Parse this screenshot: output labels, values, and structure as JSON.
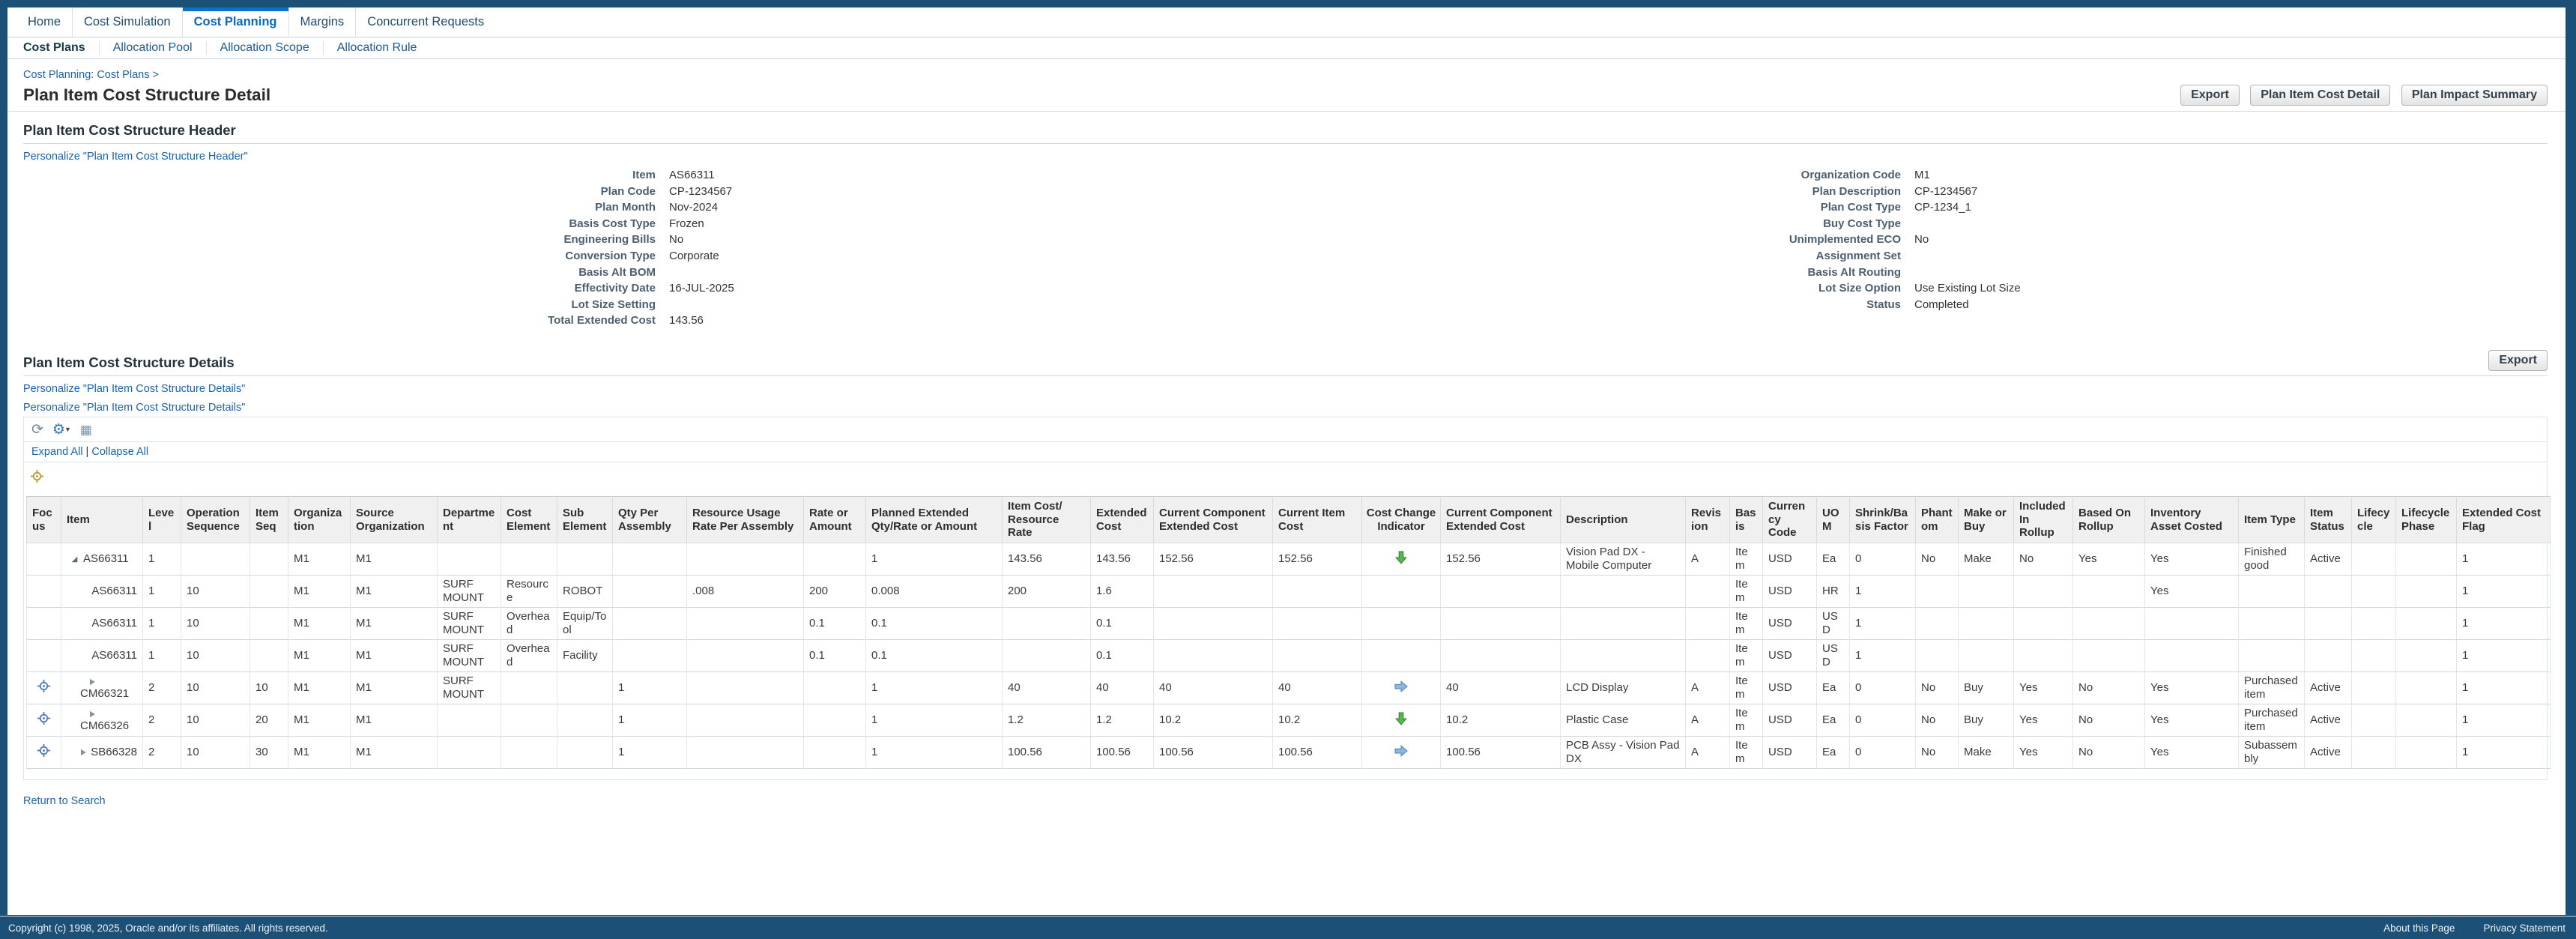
{
  "colors": {
    "frame_navy": "#1d5077",
    "active_tab_blue": "#0b72cc",
    "link_blue": "#1a64ab",
    "cost_down_green": "#54b84e",
    "cost_flat_blue": "#8cb6e4",
    "focus_blue": "#4a78b0",
    "add_gold": "#b8922e"
  },
  "icons": {
    "refresh": "⟳",
    "settings_gear": "⚙",
    "settings_dropdown": "▼",
    "detach_table": "▦",
    "focus_target": "crosshair-circle",
    "add_target_gold": "crosshair-circle-gold",
    "caret_expanded": "triangle-lower-right",
    "caret_collapsed": "triangle-right",
    "cost_change_down": "green-down-arrow",
    "cost_change_flat": "blue-right-arrow"
  },
  "tabs": [
    {
      "label": "Home",
      "active": false
    },
    {
      "label": "Cost Simulation",
      "active": false
    },
    {
      "label": "Cost Planning",
      "active": true
    },
    {
      "label": "Margins",
      "active": false
    },
    {
      "label": "Concurrent Requests",
      "active": false
    }
  ],
  "subtabs": [
    {
      "label": "Cost Plans",
      "active": true
    },
    {
      "label": "Allocation Pool",
      "active": false
    },
    {
      "label": "Allocation Scope",
      "active": false
    },
    {
      "label": "Allocation Rule",
      "active": false
    }
  ],
  "breadcrumb": {
    "link": "Cost Planning: Cost Plans",
    "separator": ">"
  },
  "page": {
    "title": "Plan Item Cost Structure Detail"
  },
  "page_actions": [
    "Export",
    "Plan Item Cost Detail",
    "Plan Impact Summary"
  ],
  "header_section": {
    "title": "Plan Item Cost Structure Header",
    "personalize_link": "Personalize \"Plan Item Cost Structure Header\"",
    "left_fields": [
      {
        "label": "Item",
        "value": "AS66311"
      },
      {
        "label": "Plan Code",
        "value": "CP-1234567"
      },
      {
        "label": "Plan Month",
        "value": "Nov-2024"
      },
      {
        "label": "Basis Cost Type",
        "value": "Frozen"
      },
      {
        "label": "Engineering Bills",
        "value": "No"
      },
      {
        "label": "Conversion Type",
        "value": "Corporate"
      },
      {
        "label": "Basis Alt BOM",
        "value": ""
      },
      {
        "label": "Effectivity Date",
        "value": "16-JUL-2025"
      },
      {
        "label": "Lot Size Setting",
        "value": ""
      },
      {
        "label": "Total Extended Cost",
        "value": "143.56"
      }
    ],
    "right_fields": [
      {
        "label": "Organization Code",
        "value": "M1"
      },
      {
        "label": "Plan Description",
        "value": "CP-1234567"
      },
      {
        "label": "Plan Cost Type",
        "value": "CP-1234_1"
      },
      {
        "label": "Buy Cost Type",
        "value": ""
      },
      {
        "label": "Unimplemented ECO",
        "value": "No"
      },
      {
        "label": "Assignment Set",
        "value": ""
      },
      {
        "label": "Basis Alt Routing",
        "value": ""
      },
      {
        "label": "Lot Size Option",
        "value": "Use Existing Lot Size"
      },
      {
        "label": "Status",
        "value": "Completed"
      }
    ]
  },
  "details_section": {
    "title": "Plan Item Cost Structure Details",
    "export_button": "Export",
    "personalize_links": [
      "Personalize \"Plan Item Cost Structure Details\"",
      "Personalize \"Plan Item Cost Structure Details\""
    ],
    "expand_all": "Expand All",
    "separator": " | ",
    "collapse_all": "Collapse All",
    "columns": [
      {
        "key": "focus",
        "label": "Focus",
        "width": 46
      },
      {
        "key": "item",
        "label": "Item",
        "width": 109
      },
      {
        "key": "level",
        "label": "Level",
        "width": 51
      },
      {
        "key": "opseq",
        "label": "Operation Sequence",
        "width": 92
      },
      {
        "key": "itemseq",
        "label": "Item Seq",
        "width": 51
      },
      {
        "key": "org",
        "label": "Organization",
        "width": 83
      },
      {
        "key": "srcorg",
        "label": "Source Organization",
        "width": 116
      },
      {
        "key": "dept",
        "label": "Department",
        "width": 85
      },
      {
        "key": "costelem",
        "label": "Cost Element",
        "width": 75
      },
      {
        "key": "subelem",
        "label": "Sub Element",
        "width": 74
      },
      {
        "key": "qty",
        "label": "Qty Per Assembly",
        "width": 99
      },
      {
        "key": "usage",
        "label": "Resource Usage Rate Per Assembly",
        "width": 156
      },
      {
        "key": "rate",
        "label": "Rate or Amount",
        "width": 83
      },
      {
        "key": "planned",
        "label": "Planned Extended Qty/Rate or Amount",
        "width": 182
      },
      {
        "key": "itemcost",
        "label": "Item Cost/ Resource Rate",
        "width": 118
      },
      {
        "key": "extcost",
        "label": "Extended Cost",
        "width": 84
      },
      {
        "key": "curcomp",
        "label": "Current Component Extended Cost",
        "width": 159
      },
      {
        "key": "curitem",
        "label": "Current Item Cost",
        "width": 119
      },
      {
        "key": "indicator",
        "label": "Cost Change Indicator",
        "width": 105,
        "align": "center"
      },
      {
        "key": "curcomp2",
        "label": "Current Component Extended Cost",
        "width": 160
      },
      {
        "key": "desc",
        "label": "Description",
        "width": 167
      },
      {
        "key": "rev",
        "label": "Revision",
        "width": 59
      },
      {
        "key": "basis",
        "label": "Basis",
        "width": 44
      },
      {
        "key": "curr",
        "label": "Currency Code",
        "width": 72
      },
      {
        "key": "uom",
        "label": "UOM",
        "width": 44
      },
      {
        "key": "shrink",
        "label": "Shrink/Basis Factor",
        "width": 88
      },
      {
        "key": "phantom",
        "label": "Phantom",
        "width": 57
      },
      {
        "key": "makebuy",
        "label": "Make or Buy",
        "width": 74
      },
      {
        "key": "incl",
        "label": "Included In Rollup",
        "width": 79
      },
      {
        "key": "based",
        "label": "Based On Rollup",
        "width": 96
      },
      {
        "key": "inv",
        "label": "Inventory Asset Costed",
        "width": 125
      },
      {
        "key": "itype",
        "label": "Item Type",
        "width": 88
      },
      {
        "key": "istatus",
        "label": "Item Status",
        "width": 63
      },
      {
        "key": "lifecycle",
        "label": "Lifecycle",
        "width": 59
      },
      {
        "key": "lifephase",
        "label": "Lifecycle Phase",
        "width": 81
      },
      {
        "key": "flag",
        "label": "Extended Cost Flag",
        "width": 125
      }
    ],
    "rows": [
      {
        "focus": false,
        "item": {
          "text": "AS66311",
          "mode": "root",
          "caret": "expanded"
        },
        "level": "1",
        "opseq": "",
        "itemseq": "",
        "org": "M1",
        "srcorg": "M1",
        "dept": "",
        "costelem": "",
        "subelem": "",
        "qty": "",
        "usage": "",
        "rate": "",
        "planned": "1",
        "itemcost": "143.56",
        "extcost": "143.56",
        "curcomp": "152.56",
        "curitem": "152.56",
        "indicator": "down",
        "curcomp2": "152.56",
        "desc": "Vision Pad DX - Mobile Computer",
        "rev": "A",
        "basis": "Item",
        "curr": "USD",
        "uom": "Ea",
        "shrink": "0",
        "phantom": "No",
        "makebuy": "Make",
        "incl": "No",
        "based": "Yes",
        "inv": "Yes",
        "itype": "Finished good",
        "istatus": "Active",
        "lifecycle": "",
        "lifephase": "",
        "flag": "1"
      },
      {
        "focus": false,
        "item": {
          "text": "AS66311",
          "mode": "child-right",
          "caret": null
        },
        "level": "1",
        "opseq": "10",
        "itemseq": "",
        "org": "M1",
        "srcorg": "M1",
        "dept": "SURF MOUNT",
        "costelem": "Resource",
        "subelem": "ROBOT",
        "qty": "",
        "usage": ".008",
        "rate": "200",
        "planned": "0.008",
        "itemcost": "200",
        "extcost": "1.6",
        "curcomp": "",
        "curitem": "",
        "indicator": "",
        "curcomp2": "",
        "desc": "",
        "rev": "",
        "basis": "Item",
        "curr": "USD",
        "uom": "HR",
        "shrink": "1",
        "phantom": "",
        "makebuy": "",
        "incl": "",
        "based": "",
        "inv": "Yes",
        "itype": "",
        "istatus": "",
        "lifecycle": "",
        "lifephase": "",
        "flag": "1"
      },
      {
        "focus": false,
        "item": {
          "text": "AS66311",
          "mode": "child-right",
          "caret": null
        },
        "level": "1",
        "opseq": "10",
        "itemseq": "",
        "org": "M1",
        "srcorg": "M1",
        "dept": "SURF MOUNT",
        "costelem": "Overhead",
        "subelem": "Equip/Tool",
        "qty": "",
        "usage": "",
        "rate": "0.1",
        "planned": "0.1",
        "itemcost": "",
        "extcost": "0.1",
        "curcomp": "",
        "curitem": "",
        "indicator": "",
        "curcomp2": "",
        "desc": "",
        "rev": "",
        "basis": "Item",
        "curr": "USD",
        "uom": "USD",
        "shrink": "1",
        "phantom": "",
        "makebuy": "",
        "incl": "",
        "based": "",
        "inv": "",
        "itype": "",
        "istatus": "",
        "lifecycle": "",
        "lifephase": "",
        "flag": "1"
      },
      {
        "focus": false,
        "item": {
          "text": "AS66311",
          "mode": "child-right",
          "caret": null
        },
        "level": "1",
        "opseq": "10",
        "itemseq": "",
        "org": "M1",
        "srcorg": "M1",
        "dept": "SURF MOUNT",
        "costelem": "Overhead",
        "subelem": "Facility",
        "qty": "",
        "usage": "",
        "rate": "0.1",
        "planned": "0.1",
        "itemcost": "",
        "extcost": "0.1",
        "curcomp": "",
        "curitem": "",
        "indicator": "",
        "curcomp2": "",
        "desc": "",
        "rev": "",
        "basis": "Item",
        "curr": "USD",
        "uom": "USD",
        "shrink": "1",
        "phantom": "",
        "makebuy": "",
        "incl": "",
        "based": "",
        "inv": "",
        "itype": "",
        "istatus": "",
        "lifecycle": "",
        "lifephase": "",
        "flag": "1"
      },
      {
        "focus": true,
        "item": {
          "text": "CM66321",
          "mode": "wrap",
          "caret": "collapsed"
        },
        "level": "2",
        "opseq": "10",
        "itemseq": "10",
        "org": "M1",
        "srcorg": "M1",
        "dept": "SURF MOUNT",
        "costelem": "",
        "subelem": "",
        "qty": "1",
        "usage": "",
        "rate": "",
        "planned": "1",
        "itemcost": "40",
        "extcost": "40",
        "curcomp": "40",
        "curitem": "40",
        "indicator": "right",
        "curcomp2": "40",
        "desc": "LCD Display",
        "rev": "A",
        "basis": "Item",
        "curr": "USD",
        "uom": "Ea",
        "shrink": "0",
        "phantom": "No",
        "makebuy": "Buy",
        "incl": "Yes",
        "based": "No",
        "inv": "Yes",
        "itype": "Purchased item",
        "istatus": "Active",
        "lifecycle": "",
        "lifephase": "",
        "flag": "1"
      },
      {
        "focus": true,
        "item": {
          "text": "CM66326",
          "mode": "wrap",
          "caret": "collapsed"
        },
        "level": "2",
        "opseq": "10",
        "itemseq": "20",
        "org": "M1",
        "srcorg": "M1",
        "dept": "",
        "costelem": "",
        "subelem": "",
        "qty": "1",
        "usage": "",
        "rate": "",
        "planned": "1",
        "itemcost": "1.2",
        "extcost": "1.2",
        "curcomp": "10.2",
        "curitem": "10.2",
        "indicator": "down",
        "curcomp2": "10.2",
        "desc": "Plastic Case",
        "rev": "A",
        "basis": "Item",
        "curr": "USD",
        "uom": "Ea",
        "shrink": "0",
        "phantom": "No",
        "makebuy": "Buy",
        "incl": "Yes",
        "based": "No",
        "inv": "Yes",
        "itype": "Purchased item",
        "istatus": "Active",
        "lifecycle": "",
        "lifephase": "",
        "flag": "1"
      },
      {
        "focus": true,
        "item": {
          "text": "SB66328",
          "mode": "leaf-right",
          "caret": "collapsed"
        },
        "level": "2",
        "opseq": "10",
        "itemseq": "30",
        "org": "M1",
        "srcorg": "M1",
        "dept": "",
        "costelem": "",
        "subelem": "",
        "qty": "1",
        "usage": "",
        "rate": "",
        "planned": "1",
        "itemcost": "100.56",
        "extcost": "100.56",
        "curcomp": "100.56",
        "curitem": "100.56",
        "indicator": "right",
        "curcomp2": "100.56",
        "desc": "PCB Assy - Vision Pad DX",
        "rev": "A",
        "basis": "Item",
        "curr": "USD",
        "uom": "Ea",
        "shrink": "0",
        "phantom": "No",
        "makebuy": "Make",
        "incl": "Yes",
        "based": "No",
        "inv": "Yes",
        "itype": "Subassembly",
        "istatus": "Active",
        "lifecycle": "",
        "lifephase": "",
        "flag": "1"
      }
    ]
  },
  "return_link": "Return to Search",
  "footer": {
    "copyright": "Copyright (c) 1998, 2025, Oracle and/or its affiliates. All rights reserved.",
    "about": "About this Page",
    "privacy": "Privacy Statement"
  }
}
